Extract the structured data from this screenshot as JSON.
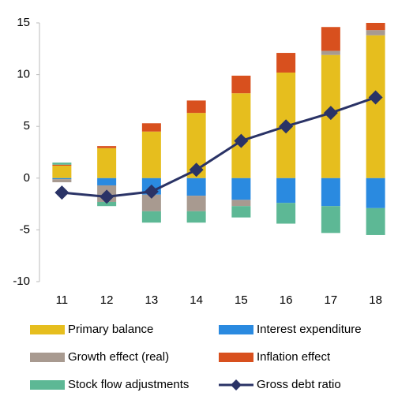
{
  "chart_data": {
    "type": "bar",
    "stacked": true,
    "categories": [
      "11",
      "12",
      "13",
      "14",
      "15",
      "16",
      "17",
      "18"
    ],
    "ylim": [
      -10,
      15
    ],
    "yticks": [
      -10,
      -5,
      0,
      5,
      10,
      15
    ],
    "series": [
      {
        "name": "Primary balance",
        "color": "#e6be1e",
        "values": [
          1.2,
          2.9,
          4.5,
          6.3,
          8.2,
          10.2,
          11.9,
          13.8
        ]
      },
      {
        "name": "Interest expenditure",
        "color": "#2a8ae0",
        "values": [
          -0.1,
          -0.7,
          -1.6,
          -1.7,
          -2.1,
          -2.4,
          -2.7,
          -2.9
        ]
      },
      {
        "name": "Growth effect (real)",
        "color": "#a89a90",
        "values": [
          -0.3,
          -1.6,
          -1.6,
          -1.5,
          -0.6,
          0,
          0.4,
          0.5
        ]
      },
      {
        "name": "Inflation effect",
        "color": "#d8501e",
        "values": [
          0.1,
          0.2,
          0.8,
          1.2,
          1.7,
          1.9,
          2.3,
          0.7
        ]
      },
      {
        "name": "Stock flow adjustments",
        "color": "#5db895",
        "values": [
          0.2,
          -0.4,
          -1.1,
          -1.1,
          -1.1,
          -2.0,
          -2.6,
          -2.6
        ]
      },
      {
        "name": "Gross debt ratio",
        "color": "#2a3366",
        "type": "line",
        "values": [
          -1.4,
          -1.8,
          -1.3,
          0.8,
          3.6,
          5.0,
          6.3,
          7.8
        ]
      }
    ]
  }
}
